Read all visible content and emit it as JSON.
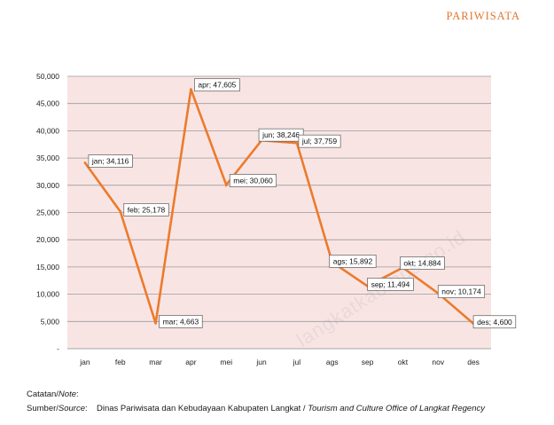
{
  "header": {
    "section_title": "PARIWISATA"
  },
  "notes": {
    "catatan_label": "Catatan/",
    "catatan_label_en": "Note",
    "sumber_label": "Sumber/",
    "sumber_label_en": "Source",
    "colon": ":",
    "source_text": "Dinas Pariwisata dan Kebudayaan Kabupaten Langkat",
    "source_sep": " / ",
    "source_text_en": "Tourism and Culture Office of Langkat Regency"
  },
  "watermark": "langkatkab.bps.go.id",
  "colors": {
    "plot_bg": "#f9e4e4",
    "line": "#ec7b2c",
    "grid": "#9a9a9a",
    "header": "#e0762c"
  },
  "chart_data": {
    "type": "line",
    "title": "",
    "xlabel": "",
    "ylabel": "",
    "categories": [
      "jan",
      "feb",
      "mar",
      "apr",
      "mei",
      "jun",
      "jul",
      "ags",
      "sep",
      "okt",
      "nov",
      "des"
    ],
    "values": [
      34116,
      25178,
      4663,
      47605,
      30060,
      38246,
      37759,
      15892,
      11494,
      14884,
      10174,
      4600
    ],
    "data_labels": [
      "jan;  34,116",
      "feb;  25,178",
      "mar;  4,663",
      "apr;  47,605",
      "mei;  30,060",
      "jun;  38,246",
      "jul;  37,759",
      "ags;  15,892",
      "sep;  11,494",
      "okt;  14,884",
      "nov;  10,174",
      "des;  4,600"
    ],
    "yticks": [
      0,
      5000,
      10000,
      15000,
      20000,
      25000,
      30000,
      35000,
      40000,
      45000,
      50000
    ],
    "ytick_labels": [
      "-",
      "5,000",
      "10,000",
      "15,000",
      "20,000",
      "25,000",
      "30,000",
      "35,000",
      "40,000",
      "45,000",
      "50,000"
    ],
    "ylim": [
      0,
      50000
    ],
    "grid": true
  }
}
